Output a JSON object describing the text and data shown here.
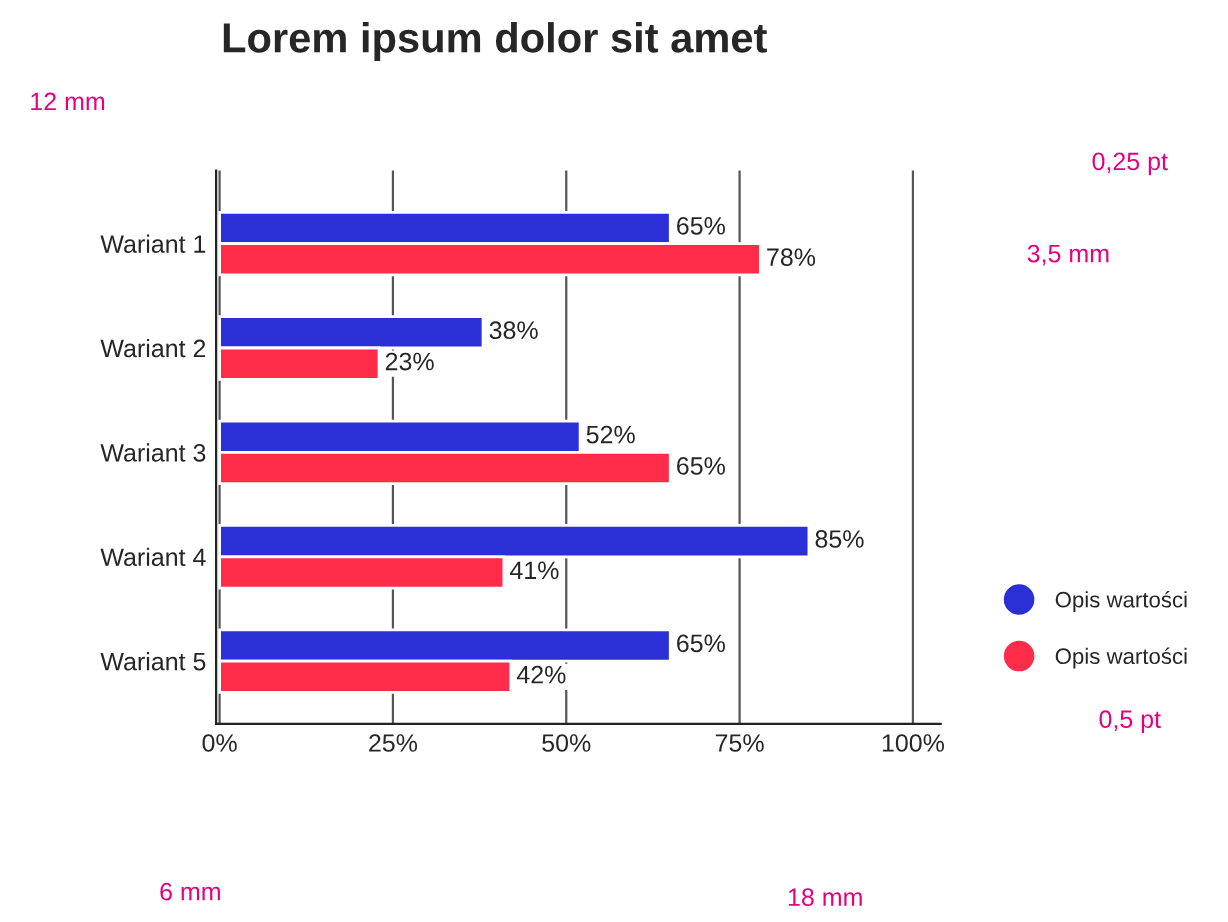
{
  "chart_data": {
    "type": "bar",
    "orientation": "horizontal",
    "title": "Lorem ipsum dolor sit amet",
    "categories": [
      "Wariant 1",
      "Wariant 2",
      "Wariant 3",
      "Wariant 4",
      "Wariant 5"
    ],
    "series": [
      {
        "name": "Opis wartości",
        "color": "#2a2fd6",
        "values": [
          65,
          38,
          52,
          85,
          65
        ],
        "value_labels": [
          "65%",
          "38%",
          "52%",
          "85%",
          "65%"
        ]
      },
      {
        "name": "Opis wartości",
        "color": "#ff2d4a",
        "values": [
          78,
          23,
          65,
          41,
          42
        ],
        "value_labels": [
          "78%",
          "23%",
          "65%",
          "41%",
          "42%"
        ]
      }
    ],
    "xlim": [
      -0.5,
      104
    ],
    "xticks": [
      {
        "value": 0,
        "label": "0%"
      },
      {
        "value": 25,
        "label": "25%"
      },
      {
        "value": 50,
        "label": "50%"
      },
      {
        "value": 75,
        "label": "75%"
      },
      {
        "value": 100,
        "label": "100%"
      }
    ],
    "grid": "x",
    "legend": "right",
    "annotations": [
      "12 mm",
      "0,25 pt",
      "3,5 mm",
      "0,5 pt",
      "6 mm",
      "18 mm"
    ]
  }
}
